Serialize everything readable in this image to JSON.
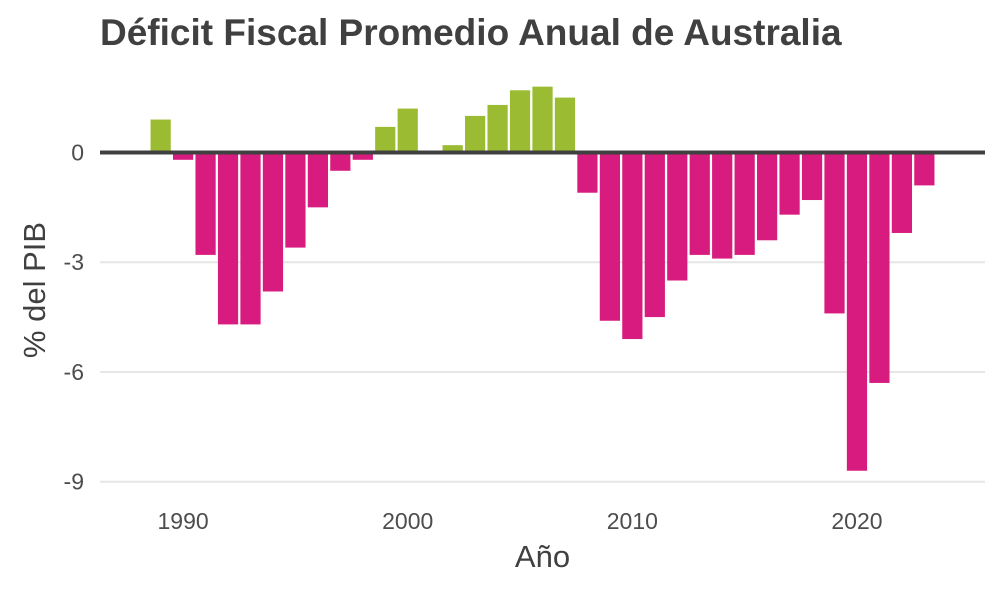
{
  "colors": {
    "positive": "#9bbb32",
    "negative": "#d81b7e",
    "zero_line": "#404040",
    "grid": "#e6e6e6",
    "text": "#4d4d4d"
  },
  "chart_data": {
    "type": "bar",
    "title": "Déficit Fiscal Promedio Anual de Australia",
    "xlabel": "Año",
    "ylabel": "% del PIB",
    "ylim": [
      -9.5,
      2.2
    ],
    "xlim": [
      1986.3,
      2025.7
    ],
    "x_ticks": [
      1990,
      2000,
      2010,
      2020
    ],
    "y_ticks": [
      0,
      -3,
      -6,
      -9
    ],
    "y_tick_labels": [
      "0",
      "-3",
      "-6",
      "-9"
    ],
    "x_tick_labels": [
      "1990",
      "2000",
      "2010",
      "2020"
    ],
    "grid": true,
    "legend": "none",
    "x": [
      1989,
      1990,
      1991,
      1992,
      1993,
      1994,
      1995,
      1996,
      1997,
      1998,
      1999,
      2000,
      2001,
      2002,
      2003,
      2004,
      2005,
      2006,
      2007,
      2008,
      2009,
      2010,
      2011,
      2012,
      2013,
      2014,
      2015,
      2016,
      2017,
      2018,
      2019,
      2020,
      2021,
      2022,
      2023
    ],
    "values": [
      0.9,
      -0.2,
      -2.8,
      -4.7,
      -4.7,
      -3.8,
      -2.6,
      -1.5,
      -0.5,
      -0.2,
      0.7,
      1.2,
      0.0,
      0.2,
      1.0,
      1.3,
      1.7,
      1.8,
      1.5,
      -1.1,
      -4.6,
      -5.1,
      -4.5,
      -3.5,
      -2.8,
      -2.9,
      -2.8,
      -2.4,
      -1.7,
      -1.3,
      -4.4,
      -8.7,
      -6.3,
      -2.2,
      -0.9
    ]
  }
}
